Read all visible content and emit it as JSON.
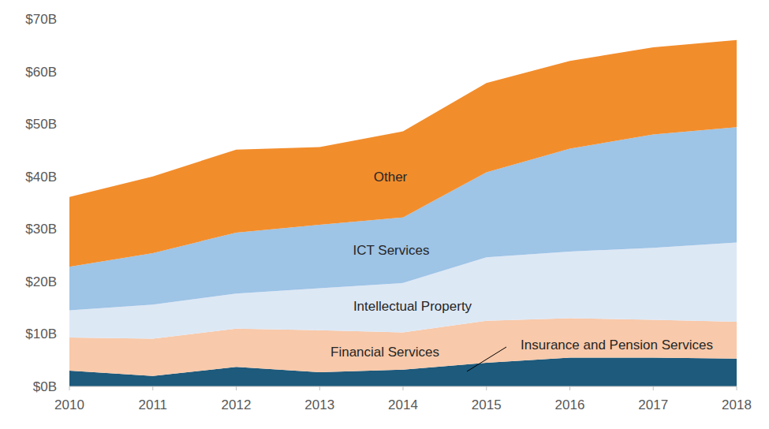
{
  "chart_data": {
    "type": "area",
    "stacked": true,
    "grid": false,
    "x": [
      2010,
      2011,
      2012,
      2013,
      2014,
      2015,
      2016,
      2017,
      2018
    ],
    "xlim": [
      2010,
      2018
    ],
    "xticks": [
      2010,
      2011,
      2012,
      2013,
      2014,
      2015,
      2016,
      2017,
      2018
    ],
    "ylim": [
      0,
      70
    ],
    "yticks": [
      {
        "value": 0,
        "label": "$0B"
      },
      {
        "value": 10,
        "label": "$10B"
      },
      {
        "value": 20,
        "label": "$20B"
      },
      {
        "value": 30,
        "label": "$30B"
      },
      {
        "value": 40,
        "label": "$40B"
      },
      {
        "value": 50,
        "label": "$50B"
      },
      {
        "value": 60,
        "label": "$60B"
      },
      {
        "value": 70,
        "label": "$70B"
      }
    ],
    "series": [
      {
        "name": "Insurance and Pension Services",
        "color": "#1d5a7c",
        "values": [
          3.0,
          2.0,
          3.7,
          2.7,
          3.2,
          4.5,
          5.5,
          5.5,
          5.3
        ]
      },
      {
        "name": "Financial Services",
        "color": "#f8c9aa",
        "values": [
          6.3,
          7.1,
          7.3,
          8.0,
          7.1,
          8.0,
          7.5,
          7.2,
          7.0
        ]
      },
      {
        "name": "Intellectual Property",
        "color": "#dde8f5",
        "values": [
          5.2,
          6.5,
          6.7,
          8.0,
          9.4,
          12.1,
          12.7,
          13.7,
          15.1
        ]
      },
      {
        "name": "ICT Services",
        "color": "#9ec4e6",
        "values": [
          8.3,
          9.8,
          11.6,
          12.1,
          12.5,
          16.2,
          19.6,
          21.6,
          22.0
        ]
      },
      {
        "name": "Other",
        "color": "#f28d2c",
        "values": [
          13.3,
          14.6,
          15.8,
          14.8,
          16.4,
          17.0,
          16.7,
          16.6,
          16.6
        ]
      }
    ]
  }
}
